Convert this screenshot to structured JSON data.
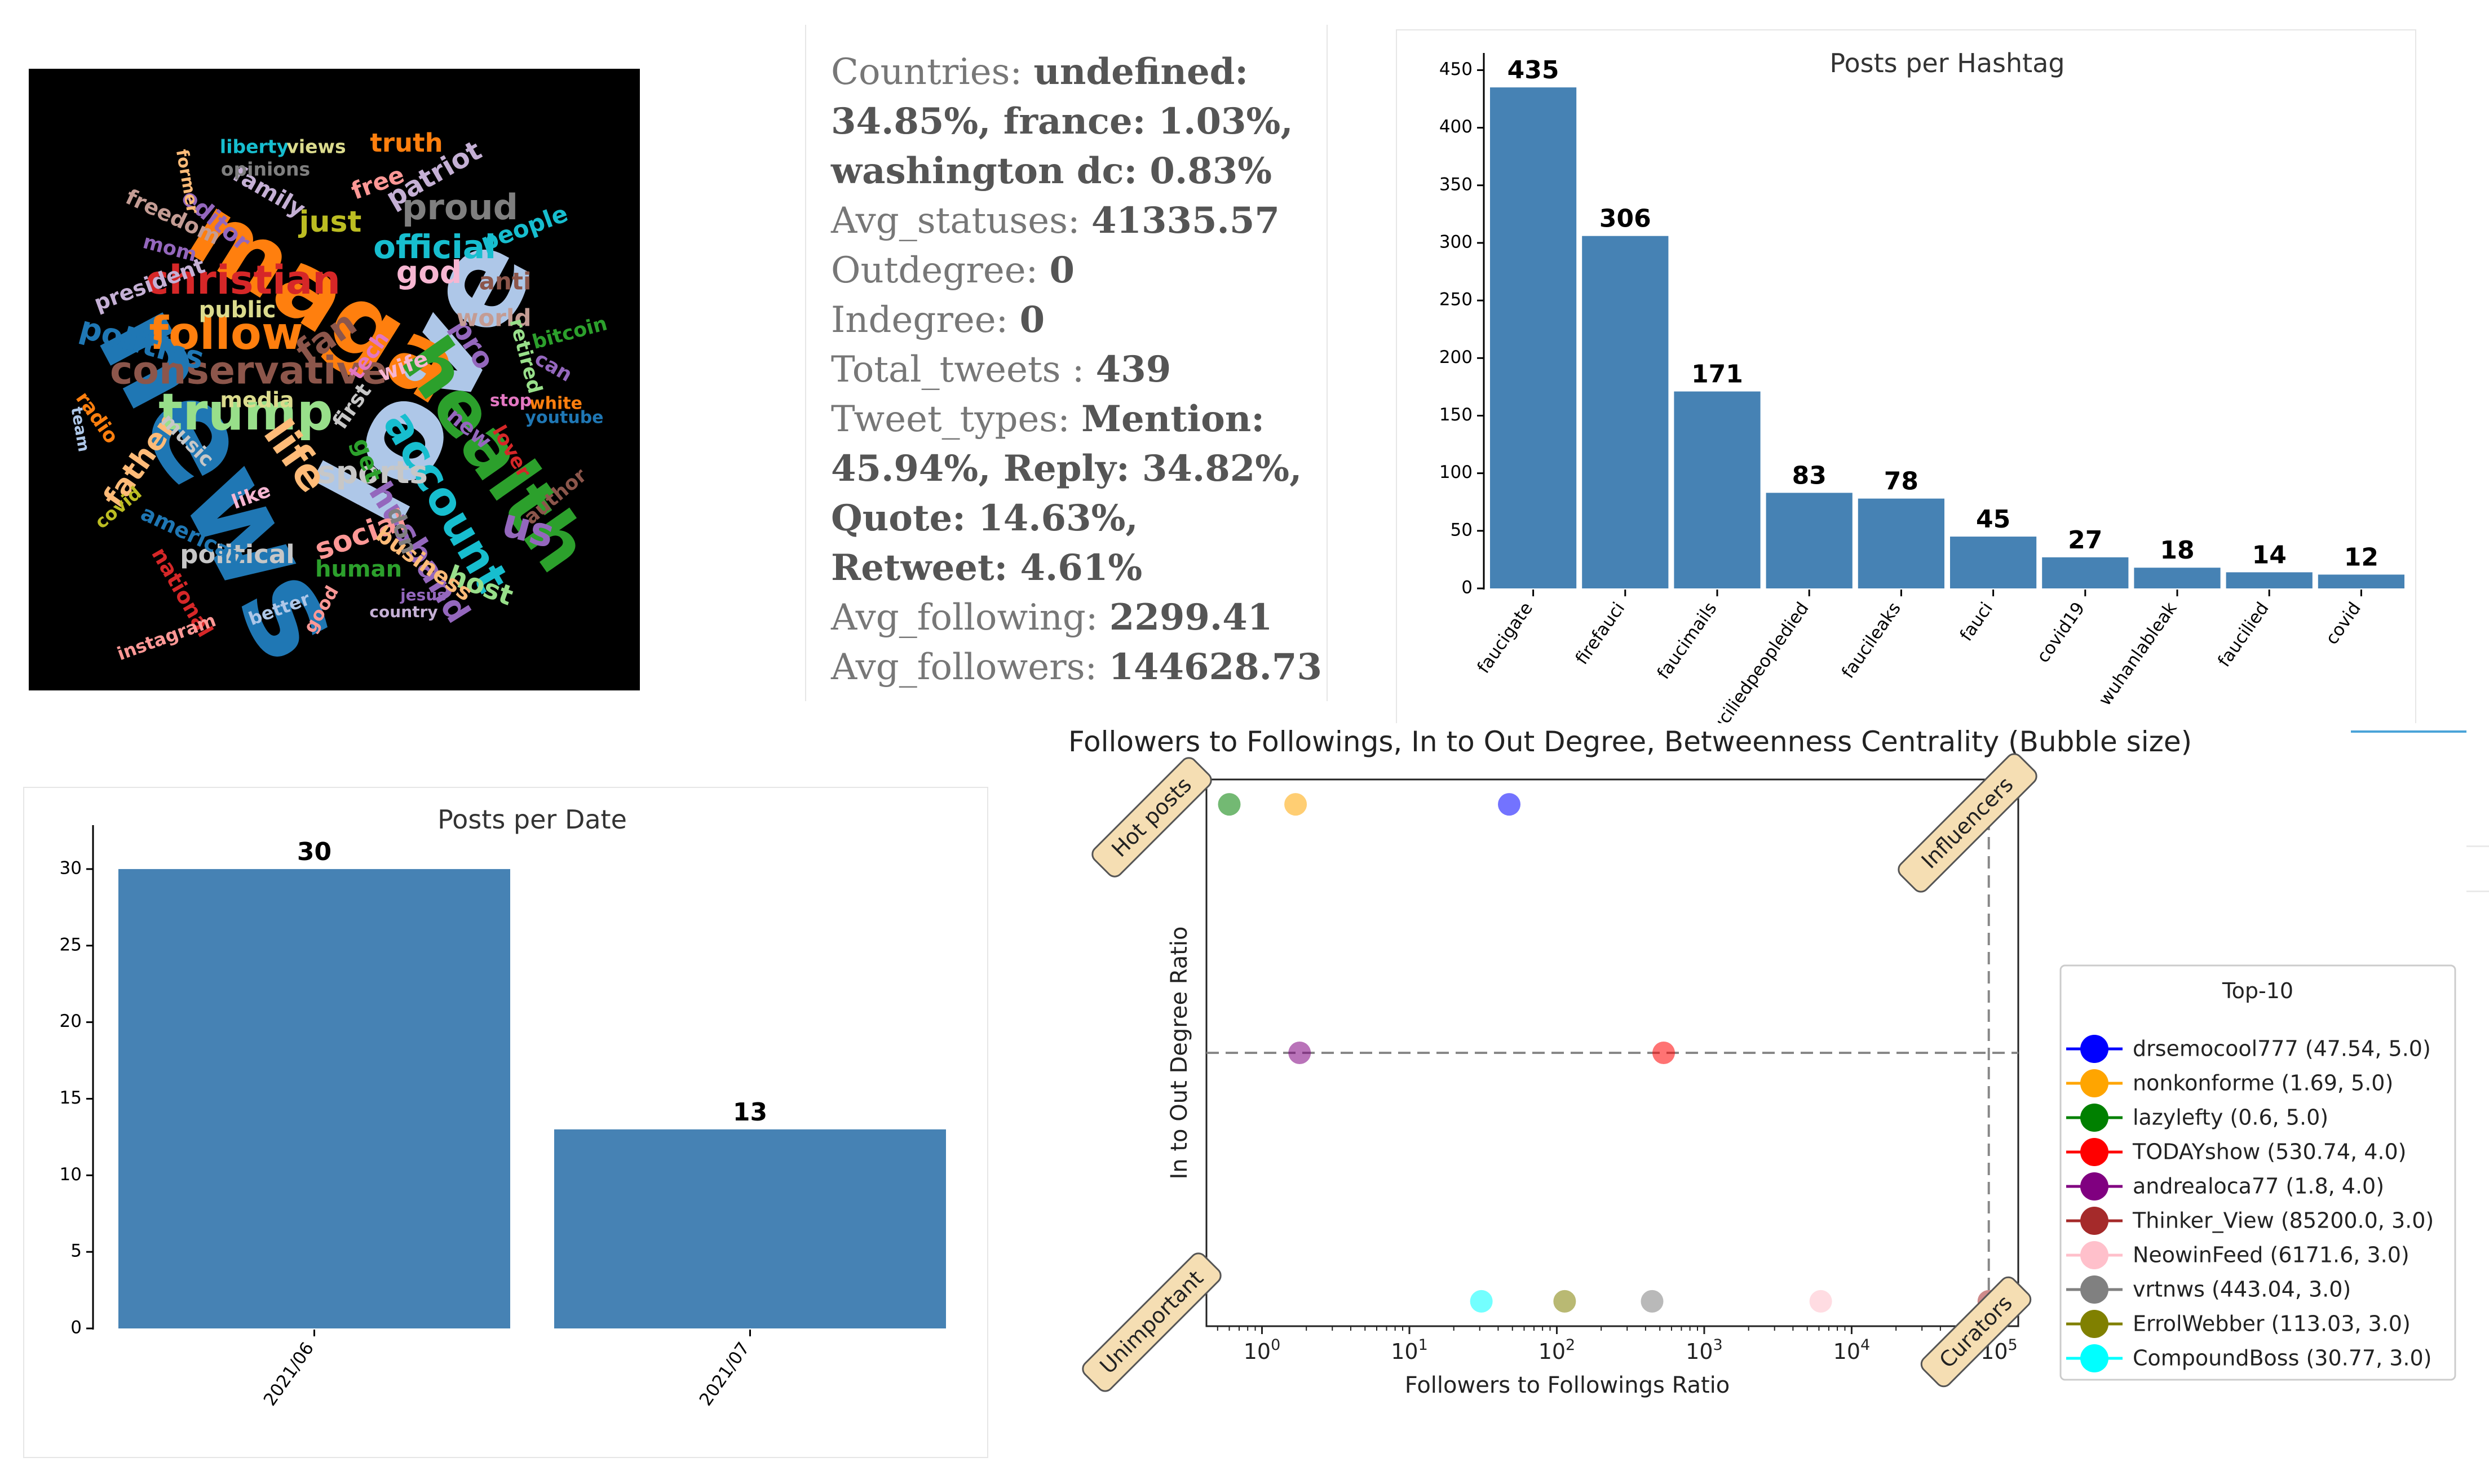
{
  "wordcloud": {
    "words": [
      {
        "text": "love",
        "color": "#aec7e8"
      },
      {
        "text": "news",
        "color": "#1f77b4"
      },
      {
        "text": "maga",
        "color": "#ff7f0e"
      },
      {
        "text": "christian",
        "color": "#d62728"
      },
      {
        "text": "health",
        "color": "#2ca02c"
      },
      {
        "text": "trump",
        "color": "#98df8a"
      },
      {
        "text": "conservative",
        "color": "#8c564b"
      },
      {
        "text": "follow",
        "color": "#ff7f0e"
      },
      {
        "text": "account",
        "color": "#17becf"
      },
      {
        "text": "life",
        "color": "#ffbb78"
      },
      {
        "text": "official",
        "color": "#17becf"
      },
      {
        "text": "proud",
        "color": "#7f7f7f"
      },
      {
        "text": "sports",
        "color": "#c7c7c7"
      },
      {
        "text": "husband",
        "color": "#9467bd"
      },
      {
        "text": "us",
        "color": "#9467bd"
      },
      {
        "text": "god",
        "color": "#f7b6d2"
      },
      {
        "text": "patriot",
        "color": "#c5b0d5"
      },
      {
        "text": "truth",
        "color": "#ff7f0e"
      },
      {
        "text": "politics",
        "color": "#1f77b4"
      },
      {
        "text": "social",
        "color": "#ff9896"
      },
      {
        "text": "just",
        "color": "#bcbd22"
      },
      {
        "text": "fan",
        "color": "#8c564b"
      },
      {
        "text": "pro",
        "color": "#9467bd"
      },
      {
        "text": "free",
        "color": "#ff9896"
      },
      {
        "text": "father",
        "color": "#ffbb78"
      },
      {
        "text": "political",
        "color": "#c7c7c7"
      },
      {
        "text": "human",
        "color": "#2ca02c"
      },
      {
        "text": "host",
        "color": "#98df8a"
      },
      {
        "text": "editor",
        "color": "#9467bd"
      },
      {
        "text": "family",
        "color": "#c5b0d5"
      },
      {
        "text": "people",
        "color": "#17becf"
      },
      {
        "text": "anti",
        "color": "#8c564b"
      },
      {
        "text": "world",
        "color": "#c49c94"
      },
      {
        "text": "public",
        "color": "#dbdb8d"
      },
      {
        "text": "tech",
        "color": "#e377c2"
      },
      {
        "text": "wife",
        "color": "#f7b6d2"
      },
      {
        "text": "media",
        "color": "#dbdb8d"
      },
      {
        "text": "freedom",
        "color": "#c49c94"
      },
      {
        "text": "president",
        "color": "#c5b0d5"
      },
      {
        "text": "mom",
        "color": "#9467bd"
      },
      {
        "text": "liberty",
        "color": "#17becf"
      },
      {
        "text": "views",
        "color": "#dbdb8d"
      },
      {
        "text": "opinions",
        "color": "#7f7f7f"
      },
      {
        "text": "former",
        "color": "#ffbb78"
      },
      {
        "text": "bitcoin",
        "color": "#2ca02c"
      },
      {
        "text": "retired",
        "color": "#98df8a"
      },
      {
        "text": "can",
        "color": "#9467bd"
      },
      {
        "text": "white",
        "color": "#ff7f0e"
      },
      {
        "text": "youtube",
        "color": "#1f77b4"
      },
      {
        "text": "stop",
        "color": "#e377c2"
      },
      {
        "text": "new",
        "color": "#9467bd"
      },
      {
        "text": "lover",
        "color": "#d62728"
      },
      {
        "text": "author",
        "color": "#8c564b"
      },
      {
        "text": "radio",
        "color": "#ff7f0e"
      },
      {
        "text": "team",
        "color": "#aec7e8"
      },
      {
        "text": "music",
        "color": "#c7c7c7"
      },
      {
        "text": "like",
        "color": "#f7b6d2"
      },
      {
        "text": "covid",
        "color": "#bcbd22"
      },
      {
        "text": "american",
        "color": "#1f77b4"
      },
      {
        "text": "national",
        "color": "#d62728"
      },
      {
        "text": "instagram",
        "color": "#ff9896"
      },
      {
        "text": "better",
        "color": "#aec7e8"
      },
      {
        "text": "good",
        "color": "#ff9896"
      },
      {
        "text": "country",
        "color": "#c5b0d5"
      },
      {
        "text": "jesus",
        "color": "#9467bd"
      },
      {
        "text": "business",
        "color": "#ffbb78"
      },
      {
        "text": "don",
        "color": "#7f7f7f"
      },
      {
        "text": "get",
        "color": "#2ca02c"
      },
      {
        "text": "first",
        "color": "#c7c7c7"
      }
    ]
  },
  "stats": {
    "countries_label": "Countries: ",
    "countries_value": "undefined: 34.85%, france: 1.03%, washington dc: 0.83%",
    "avg_statuses_label": "Avg_statuses: ",
    "avg_statuses_value": "41335.57",
    "outdegree_label": "Outdegree: ",
    "outdegree_value": "0",
    "indegree_label": "Indegree: ",
    "indegree_value": "0",
    "total_tweets_label": "Total_tweets : ",
    "total_tweets_value": "439",
    "tweet_types_label": "Tweet_types: ",
    "tweet_types_value": "Mention: 45.94%, Reply: 34.82%, Quote: 14.63%, Retweet: 4.61%",
    "avg_following_label": "Avg_following: ",
    "avg_following_value": "2299.41",
    "avg_followers_label": "Avg_followers: ",
    "avg_followers_value": "144628.73"
  },
  "chart_data": [
    {
      "type": "bar",
      "title": "Posts per Hashtag",
      "categories": [
        "faucigate",
        "firefauci",
        "faucimails",
        "fauciliedpeopledied",
        "faucileaks",
        "fauci",
        "covid19",
        "wuhanlableak",
        "faucilied",
        "covid"
      ],
      "values": [
        435,
        306,
        171,
        83,
        78,
        45,
        27,
        18,
        14,
        12
      ],
      "yticks": [
        0,
        50,
        100,
        150,
        200,
        250,
        300,
        350,
        400,
        450
      ],
      "ylim": [
        0,
        460
      ],
      "color": "#4682b4",
      "xlabel": "",
      "ylabel": ""
    },
    {
      "type": "bar",
      "title": "Posts per Date",
      "categories": [
        "2021/06",
        "2021/07"
      ],
      "values": [
        30,
        13
      ],
      "yticks": [
        0,
        5,
        10,
        15,
        20,
        25,
        30
      ],
      "ylim": [
        0,
        32.5
      ],
      "color": "#4682b4",
      "xlabel": "",
      "ylabel": ""
    },
    {
      "type": "scatter",
      "title": "Followers to Followings, In to Out Degree, Betweenness Centrality (Bubble size)",
      "xlabel": "Followers to Followings Ratio",
      "ylabel": "In to Out Degree Ratio",
      "xscale": "log",
      "xlim": [
        0.42,
        135000
      ],
      "ylim": [
        2.9,
        5.1
      ],
      "xticks": [
        {
          "value": 1,
          "base": "10",
          "exp": "0"
        },
        {
          "value": 10,
          "base": "10",
          "exp": "1"
        },
        {
          "value": 100,
          "base": "10",
          "exp": "2"
        },
        {
          "value": 1000,
          "base": "10",
          "exp": "3"
        },
        {
          "value": 10000,
          "base": "10",
          "exp": "4"
        },
        {
          "value": 100000,
          "base": "10",
          "exp": "5"
        }
      ],
      "hline": 4.0,
      "vline": 85200.0,
      "quadrant_labels": [
        "Hot posts",
        "Influencers",
        "Unimportant",
        "Curators"
      ],
      "legend_title": "Top-10",
      "points": [
        {
          "name": "drsemocool777",
          "x": 47.54,
          "y": 5.0,
          "color": "#0000ff",
          "label": "drsemocool777 (47.54, 5.0)"
        },
        {
          "name": "nonkonforme",
          "x": 1.69,
          "y": 5.0,
          "color": "#ffa500",
          "label": "nonkonforme (1.69, 5.0)"
        },
        {
          "name": "lazylefty",
          "x": 0.6,
          "y": 5.0,
          "color": "#008000",
          "label": "lazylefty (0.6, 5.0)"
        },
        {
          "name": "TODAYshow",
          "x": 530.74,
          "y": 4.0,
          "color": "#ff0000",
          "label": "TODAYshow (530.74, 4.0)"
        },
        {
          "name": "andrealoca77",
          "x": 1.8,
          "y": 4.0,
          "color": "#800080",
          "label": "andrealoca77 (1.8, 4.0)"
        },
        {
          "name": "Thinker_View",
          "x": 85200.0,
          "y": 3.0,
          "color": "#a52a2a",
          "label": "Thinker_View (85200.0, 3.0)"
        },
        {
          "name": "NeowinFeed",
          "x": 6171.6,
          "y": 3.0,
          "color": "#ffc0cb",
          "label": "NeowinFeed (6171.6, 3.0)"
        },
        {
          "name": "vrtnws",
          "x": 443.04,
          "y": 3.0,
          "color": "#808080",
          "label": "vrtnws (443.04, 3.0)"
        },
        {
          "name": "ErrolWebber",
          "x": 113.03,
          "y": 3.0,
          "color": "#808000",
          "label": "ErrolWebber (113.03, 3.0)"
        },
        {
          "name": "CompoundBoss",
          "x": 30.77,
          "y": 3.0,
          "color": "#00ffff",
          "label": "CompoundBoss (30.77, 3.0)"
        }
      ]
    }
  ]
}
